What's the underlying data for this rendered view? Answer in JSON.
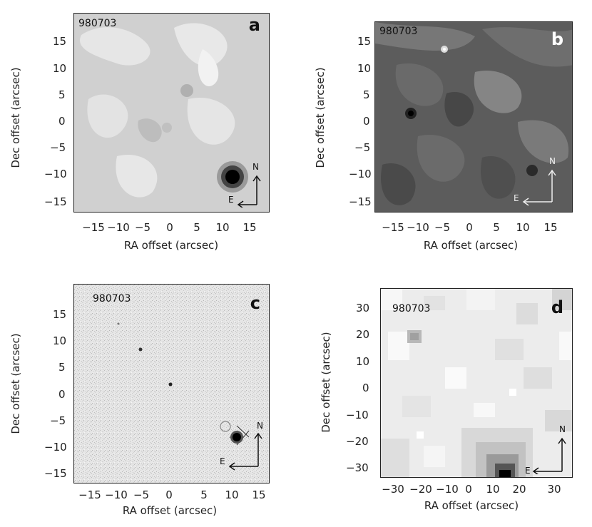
{
  "panels": [
    {
      "id": "a",
      "letter": "a",
      "date": "980703",
      "xlabel": "RA offset (arcsec)",
      "ylabel": "Dec offset (arcsec)",
      "xticks": [
        "−15",
        "−10",
        "−5",
        "0",
        "5",
        "10",
        "15"
      ],
      "yticks": [
        "15",
        "10",
        "5",
        "0",
        "−5",
        "−10",
        "−15"
      ],
      "compass": {
        "north": "N",
        "east": "E"
      },
      "style": "light"
    },
    {
      "id": "b",
      "letter": "b",
      "date": "980703",
      "xlabel": "RA offset (arcsec)",
      "ylabel": "Dec offset (arcsec)",
      "xticks": [
        "−15",
        "−10",
        "−5",
        "0",
        "5",
        "10",
        "15"
      ],
      "yticks": [
        "15",
        "10",
        "5",
        "0",
        "−5",
        "−10",
        "−15"
      ],
      "compass": {
        "north": "N",
        "east": "E"
      },
      "style": "dark"
    },
    {
      "id": "c",
      "letter": "c",
      "date": "980703",
      "xlabel": "RA offset (arcsec)",
      "ylabel": "Dec offset (arcsec)",
      "xticks": [
        "−15",
        "−10",
        "−5",
        "0",
        "5",
        "10",
        "15"
      ],
      "yticks": [
        "15",
        "10",
        "5",
        "0",
        "−5",
        "−10",
        "−15"
      ],
      "compass": {
        "north": "N",
        "east": "E"
      },
      "style": "noise"
    },
    {
      "id": "d",
      "letter": "d",
      "date": "980703",
      "xlabel": "RA offset (arcsec)",
      "ylabel": "Dec offset (arcsec)",
      "xticks": [
        "−30",
        "−20",
        "−10",
        "0",
        "10",
        "20",
        "30"
      ],
      "yticks": [
        "30",
        "20",
        "10",
        "0",
        "−10",
        "−20",
        "−30"
      ],
      "compass": {
        "north": "N",
        "east": "E"
      },
      "style": "pixel"
    }
  ]
}
